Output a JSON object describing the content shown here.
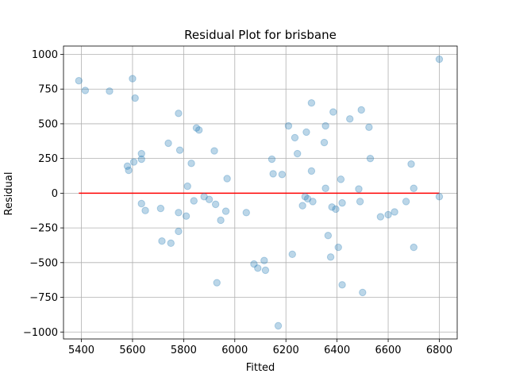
{
  "chart_data": {
    "type": "scatter",
    "title": "Residual Plot for brisbane",
    "xlabel": "Fitted",
    "ylabel": "Residual",
    "xlim": [
      5330,
      6870
    ],
    "ylim": [
      -1050,
      1060
    ],
    "xticks": [
      5400,
      5600,
      5800,
      6000,
      6200,
      6400,
      6600,
      6800
    ],
    "yticks": [
      -1000,
      -750,
      -500,
      -250,
      0,
      250,
      500,
      750,
      1000
    ],
    "grid": true,
    "colors": {
      "points": "#1f77b4",
      "zero_line": "#ff0000",
      "grid": "#b0b0b0"
    },
    "zero_line": {
      "y": 0,
      "x_start": 5390,
      "x_end": 6800
    },
    "points": [
      [
        5390,
        810
      ],
      [
        5415,
        740
      ],
      [
        5510,
        735
      ],
      [
        5600,
        825
      ],
      [
        5610,
        685
      ],
      [
        5580,
        195
      ],
      [
        5585,
        165
      ],
      [
        5605,
        225
      ],
      [
        5635,
        285
      ],
      [
        5635,
        245
      ],
      [
        5635,
        -75
      ],
      [
        5650,
        -125
      ],
      [
        5710,
        -110
      ],
      [
        5715,
        -345
      ],
      [
        5740,
        360
      ],
      [
        5750,
        -360
      ],
      [
        5780,
        575
      ],
      [
        5785,
        310
      ],
      [
        5780,
        -140
      ],
      [
        5780,
        -275
      ],
      [
        5810,
        -165
      ],
      [
        5815,
        50
      ],
      [
        5830,
        215
      ],
      [
        5840,
        -55
      ],
      [
        5850,
        470
      ],
      [
        5860,
        455
      ],
      [
        5880,
        -25
      ],
      [
        5900,
        -45
      ],
      [
        5920,
        305
      ],
      [
        5925,
        -80
      ],
      [
        5930,
        -645
      ],
      [
        5945,
        -195
      ],
      [
        5965,
        -130
      ],
      [
        5970,
        105
      ],
      [
        6045,
        -140
      ],
      [
        6075,
        -510
      ],
      [
        6090,
        -540
      ],
      [
        6115,
        -485
      ],
      [
        6120,
        -555
      ],
      [
        6145,
        245
      ],
      [
        6150,
        140
      ],
      [
        6170,
        -955
      ],
      [
        6185,
        135
      ],
      [
        6210,
        485
      ],
      [
        6225,
        -440
      ],
      [
        6235,
        400
      ],
      [
        6245,
        285
      ],
      [
        6265,
        -90
      ],
      [
        6275,
        -25
      ],
      [
        6280,
        440
      ],
      [
        6285,
        -40
      ],
      [
        6300,
        160
      ],
      [
        6300,
        650
      ],
      [
        6305,
        -60
      ],
      [
        6350,
        365
      ],
      [
        6355,
        485
      ],
      [
        6355,
        35
      ],
      [
        6365,
        -305
      ],
      [
        6375,
        -460
      ],
      [
        6380,
        -100
      ],
      [
        6385,
        585
      ],
      [
        6395,
        -115
      ],
      [
        6405,
        -390
      ],
      [
        6415,
        100
      ],
      [
        6420,
        -660
      ],
      [
        6420,
        -70
      ],
      [
        6450,
        535
      ],
      [
        6485,
        30
      ],
      [
        6490,
        -60
      ],
      [
        6495,
        600
      ],
      [
        6500,
        -715
      ],
      [
        6525,
        475
      ],
      [
        6530,
        250
      ],
      [
        6570,
        -170
      ],
      [
        6600,
        -155
      ],
      [
        6625,
        -135
      ],
      [
        6670,
        -60
      ],
      [
        6690,
        210
      ],
      [
        6700,
        35
      ],
      [
        6700,
        -390
      ],
      [
        6800,
        965
      ],
      [
        6800,
        -25
      ]
    ]
  }
}
